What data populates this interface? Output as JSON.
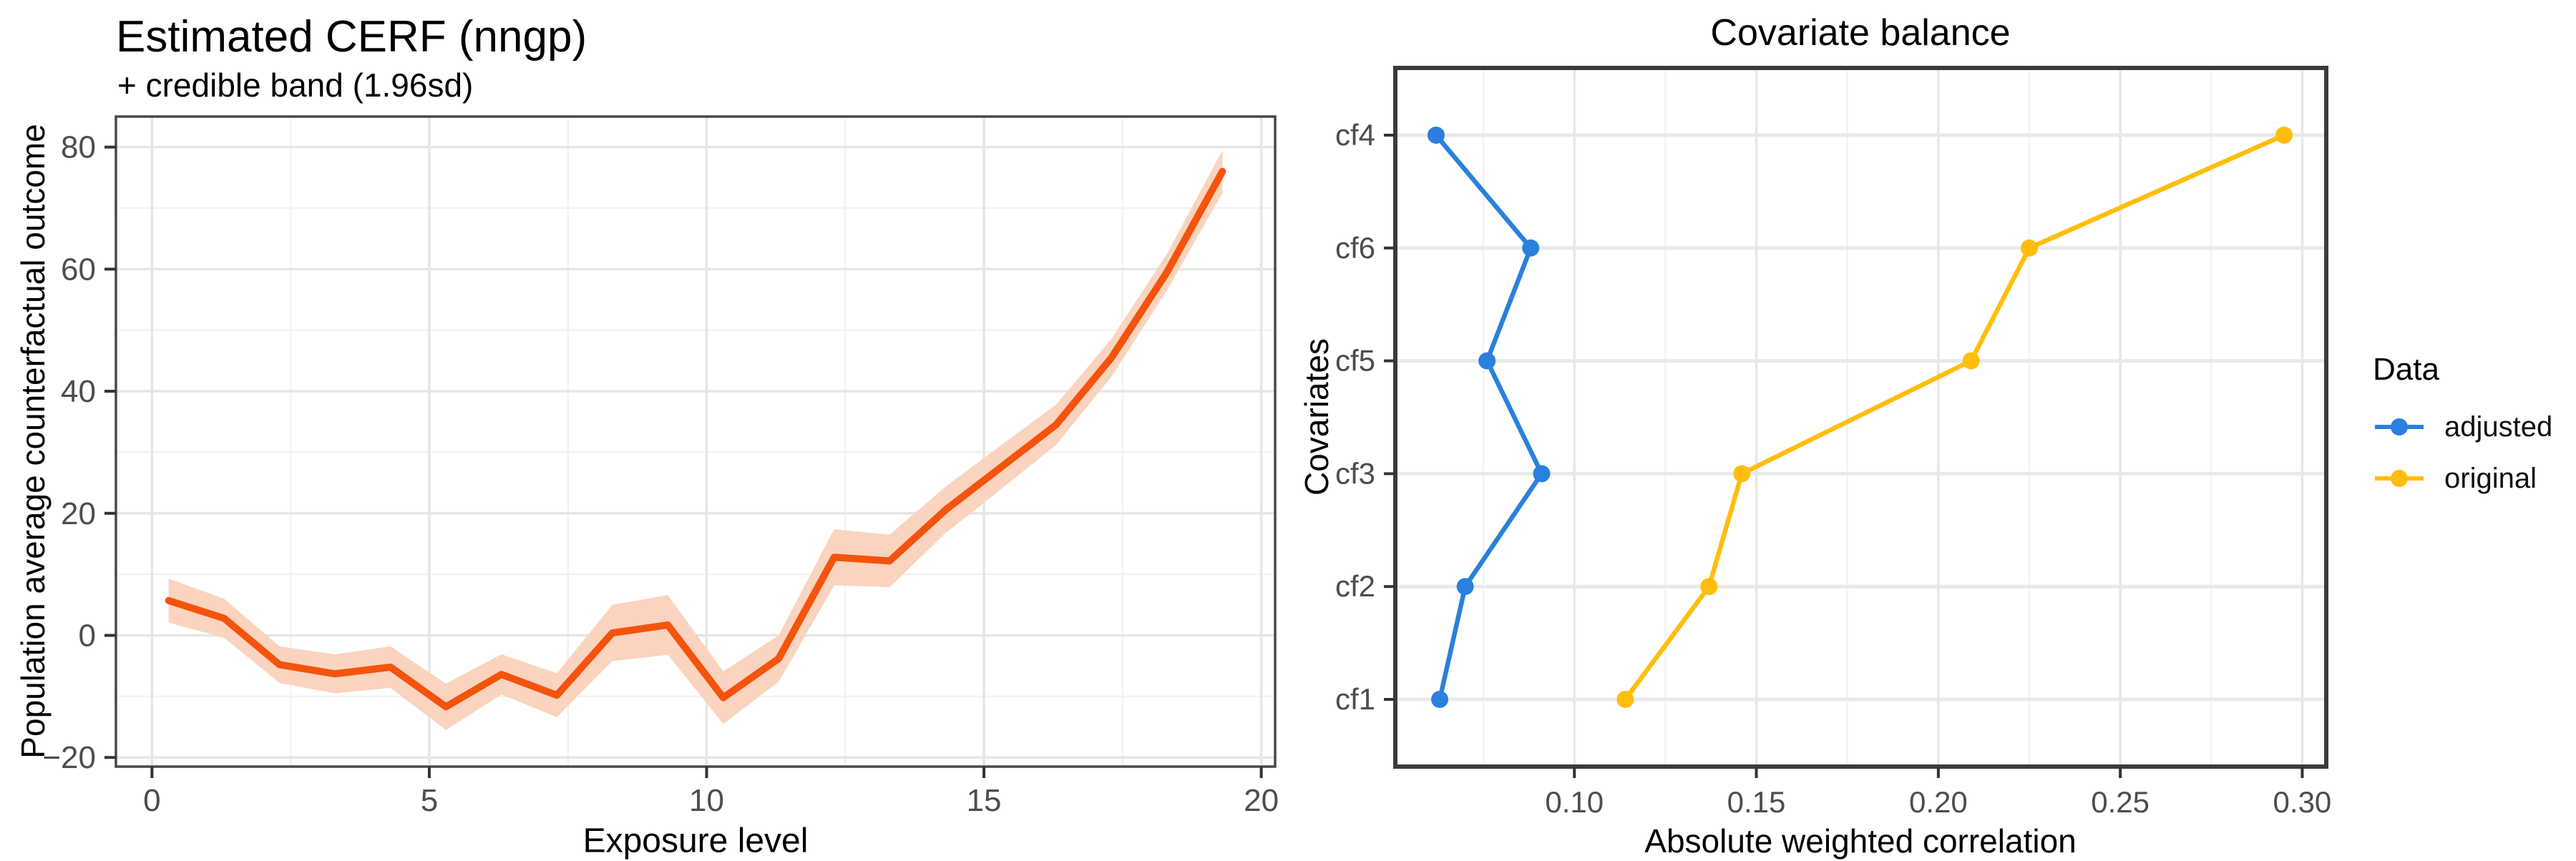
{
  "figure": {
    "background": "#ffffff"
  },
  "chart_data": [
    {
      "type": "line",
      "panel": "left",
      "title": "Estimated CERF (nngp)",
      "subtitle": "+ credible band (1.96sd)",
      "xlabel": "Exposure level",
      "ylabel": "Population average counterfactual outcome",
      "xlim": [
        -0.65,
        20.25
      ],
      "ylim": [
        -21.5,
        85.0
      ],
      "grid": true,
      "legend_position": "none",
      "x_ticks": [
        {
          "v": 0,
          "label": "0"
        },
        {
          "v": 5,
          "label": "5"
        },
        {
          "v": 10,
          "label": "10"
        },
        {
          "v": 15,
          "label": "15"
        },
        {
          "v": 20,
          "label": "20"
        }
      ],
      "y_ticks": [
        {
          "v": -20,
          "label": "−20"
        },
        {
          "v": 0,
          "label": "0"
        },
        {
          "v": 20,
          "label": "20"
        },
        {
          "v": 40,
          "label": "40"
        },
        {
          "v": 60,
          "label": "60"
        },
        {
          "v": 80,
          "label": "80"
        }
      ],
      "x_minor": [
        2.5,
        7.5,
        12.5,
        17.5
      ],
      "y_minor": [
        -10,
        10,
        30,
        50,
        70
      ],
      "series": [
        {
          "name": "cerf-estimate",
          "color": "#F4530D",
          "band_color": "#FAD4BE",
          "x": [
            0.3,
            1.3,
            2.3,
            3.3,
            4.3,
            5.3,
            6.3,
            7.3,
            8.3,
            9.3,
            10.3,
            11.3,
            12.3,
            13.3,
            14.3,
            15.3,
            16.3,
            17.3,
            18.3,
            19.3
          ],
          "y": [
            5.7,
            2.8,
            -4.8,
            -6.3,
            -5.2,
            -11.7,
            -6.4,
            -9.8,
            0.4,
            1.7,
            -10.2,
            -3.8,
            12.8,
            12.2,
            20.5,
            27.5,
            34.5,
            45.5,
            59.5,
            76.0
          ],
          "upper": [
            9.3,
            6.0,
            -1.8,
            -3.1,
            -1.8,
            -7.9,
            -3.1,
            -6.2,
            5.0,
            6.6,
            -5.9,
            0.0,
            17.4,
            16.5,
            24.3,
            31.1,
            37.8,
            48.6,
            62.5,
            79.5
          ],
          "lower": [
            2.1,
            -0.4,
            -7.8,
            -9.5,
            -8.6,
            -15.5,
            -9.7,
            -13.4,
            -4.2,
            -3.2,
            -14.5,
            -7.6,
            8.2,
            7.9,
            16.7,
            23.9,
            31.2,
            42.4,
            56.5,
            72.5
          ]
        }
      ]
    },
    {
      "type": "scatter",
      "panel": "right",
      "title": "Covariate balance",
      "xlabel": "Absolute weighted correlation",
      "ylabel": "Covariates",
      "xlim": [
        0.0508,
        0.3066
      ],
      "grid": true,
      "categories_top_to_bottom": [
        "cf4",
        "cf6",
        "cf5",
        "cf3",
        "cf2",
        "cf1"
      ],
      "x_ticks": [
        {
          "v": 0.1,
          "label": "0.10"
        },
        {
          "v": 0.15,
          "label": "0.15"
        },
        {
          "v": 0.2,
          "label": "0.20"
        },
        {
          "v": 0.25,
          "label": "0.25"
        },
        {
          "v": 0.3,
          "label": "0.30"
        }
      ],
      "x_minor": [
        0.075,
        0.125,
        0.175,
        0.225,
        0.275
      ],
      "legend": {
        "title": "Data",
        "position": "right",
        "items": [
          {
            "label": "adjusted",
            "color": "#2A80DD"
          },
          {
            "label": "original",
            "color": "#FFBE0C"
          }
        ]
      },
      "series": [
        {
          "name": "adjusted",
          "color": "#2A80DD",
          "values_by_category": {
            "cf4": 0.062,
            "cf6": 0.088,
            "cf5": 0.076,
            "cf3": 0.091,
            "cf2": 0.07,
            "cf1": 0.063
          }
        },
        {
          "name": "original",
          "color": "#FFBE0C",
          "values_by_category": {
            "cf4": 0.295,
            "cf6": 0.225,
            "cf5": 0.209,
            "cf3": 0.146,
            "cf2": 0.137,
            "cf1": 0.114
          }
        }
      ]
    }
  ],
  "style": {
    "grid_major": "#E6E6E6",
    "grid_minor": "#F2F2F2",
    "grid_row": "#E9E9E9",
    "panel_border_left": "#484848",
    "panel_border_right": "#3B3B3B",
    "tick_color": "#333333",
    "tick_label_color": "#4D4D4D"
  }
}
